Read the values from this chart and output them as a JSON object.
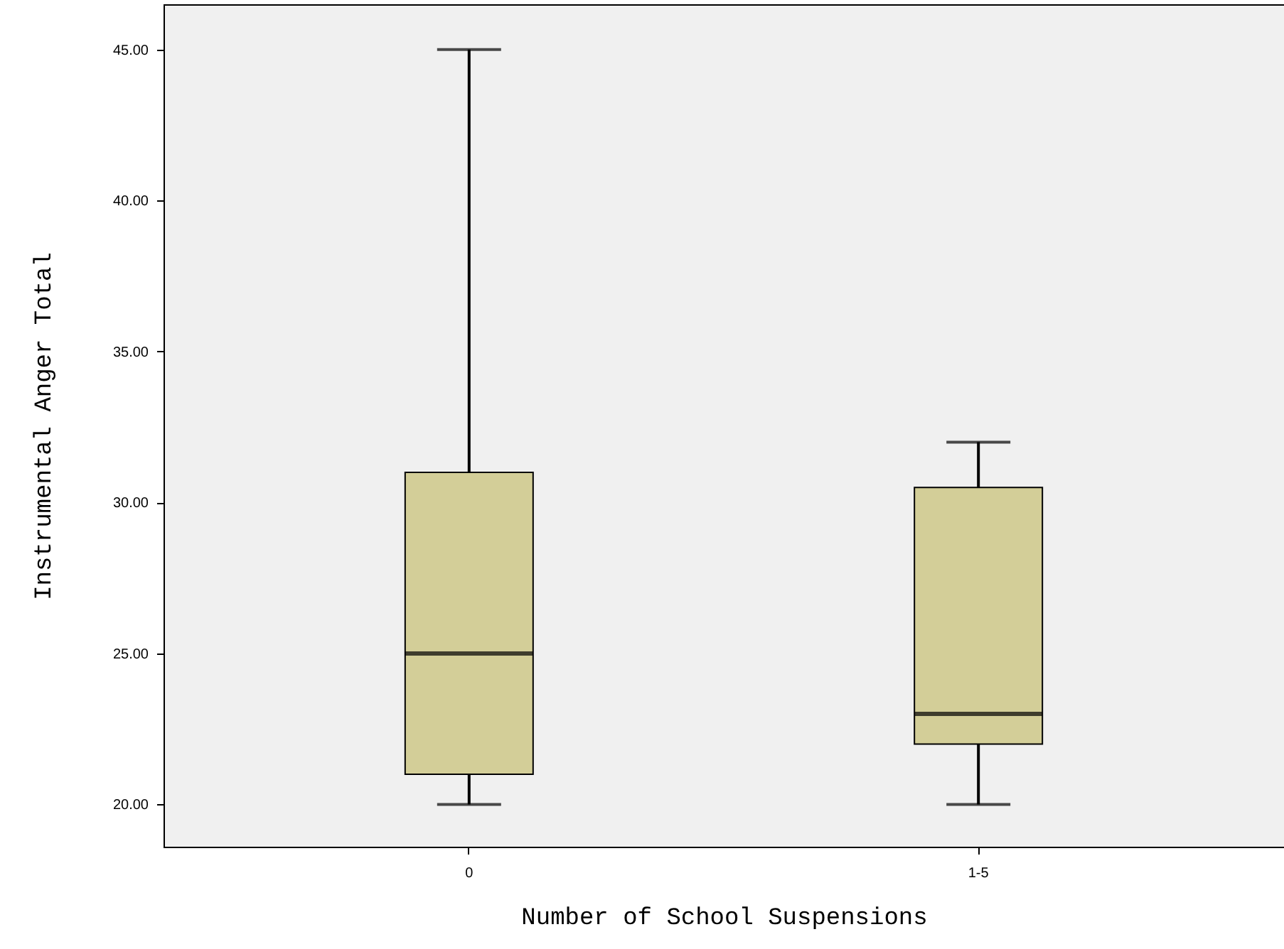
{
  "chart_data": {
    "type": "box",
    "xlabel": "Number of School Suspensions",
    "ylabel": "Instrumental Anger Total",
    "categories": [
      "0",
      "1-5"
    ],
    "series": [
      {
        "color": "#d3ce98",
        "boxes": [
          {
            "low": 20,
            "q1": 21,
            "median": 25,
            "q3": 31,
            "high": 45
          },
          {
            "low": 20,
            "q1": 22,
            "median": 23,
            "q3": 30.5,
            "high": 32
          }
        ]
      }
    ],
    "ylim": [
      18.6,
      46.5
    ],
    "yticks": [
      {
        "value": 20,
        "label": "20.00"
      },
      {
        "value": 25,
        "label": "25.00"
      },
      {
        "value": 30,
        "label": "30.00"
      },
      {
        "value": 35,
        "label": "35.00"
      },
      {
        "value": 40,
        "label": "40.00"
      },
      {
        "value": 45,
        "label": "45.00"
      }
    ]
  }
}
